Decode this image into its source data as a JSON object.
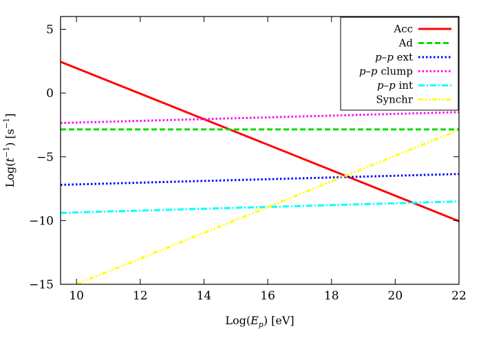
{
  "chart_data": {
    "type": "line",
    "xlabel": "Log(E_p) [eV]",
    "ylabel": "Log(t^-1) [s^-1]",
    "xlim": [
      9.5,
      22
    ],
    "ylim": [
      -15,
      6
    ],
    "xticks": [
      10,
      12,
      14,
      16,
      18,
      20,
      22
    ],
    "yticks": [
      -15,
      -10,
      -5,
      0,
      5
    ],
    "grid": false,
    "legend_position": "top-right",
    "series": [
      {
        "name": "Acc",
        "color": "#ff0000",
        "dash": "solid",
        "x": [
          9.5,
          22
        ],
        "y": [
          2.45,
          -10.05
        ]
      },
      {
        "name": "Ad",
        "color": "#00dd00",
        "dash": "dash",
        "x": [
          9.5,
          22
        ],
        "y": [
          -2.85,
          -2.85
        ]
      },
      {
        "name": "p-p ext",
        "color": "#0000ff",
        "dash": "dot",
        "x": [
          9.5,
          22
        ],
        "y": [
          -7.2,
          -6.35
        ]
      },
      {
        "name": "p-p clump",
        "color": "#ff00ff",
        "dash": "dot",
        "x": [
          9.5,
          22
        ],
        "y": [
          -2.35,
          -1.5
        ]
      },
      {
        "name": "p-p int",
        "color": "#00ffff",
        "dash": "dashdot",
        "x": [
          9.5,
          22
        ],
        "y": [
          -9.4,
          -8.5
        ]
      },
      {
        "name": "Synchr",
        "color": "#ffff00",
        "dash": "dashdotdot",
        "x": [
          10.0,
          22
        ],
        "y": [
          -15.0,
          -2.9
        ]
      }
    ]
  },
  "axis_labels": {
    "x_prefix": "Log(",
    "x_symbol": "E",
    "x_sub": "p",
    "x_suffix": ") [eV]",
    "y_prefix": "Log(",
    "y_symbol": "t",
    "y_sup": "−1",
    "y_unit_open": ") [s",
    "y_unit_sup": "−1",
    "y_unit_close": "]"
  },
  "legend_labels": [
    {
      "pre": "",
      "italic": "",
      "post": "Acc"
    },
    {
      "pre": "",
      "italic": "",
      "post": "Ad"
    },
    {
      "pre": "",
      "italic": "p–p",
      "post": " ext"
    },
    {
      "pre": "",
      "italic": "p–p",
      "post": " clump"
    },
    {
      "pre": "",
      "italic": "p–p",
      "post": " int"
    },
    {
      "pre": "",
      "italic": "",
      "post": "Synchr"
    }
  ]
}
